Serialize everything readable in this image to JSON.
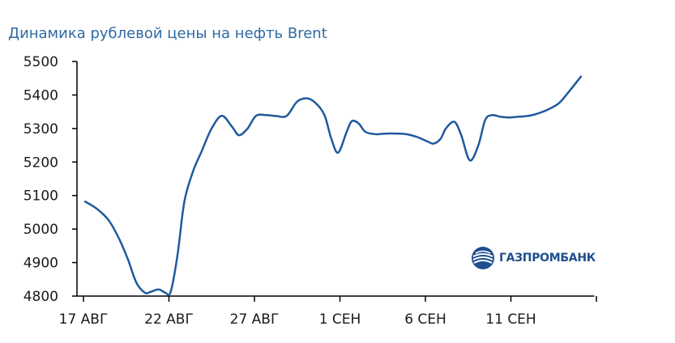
{
  "colors": {
    "line": "#1f5a9e",
    "title": "#2f6aa3",
    "axis": "#000000",
    "logo": "#1f4f8f"
  },
  "chart_data": {
    "type": "line",
    "title": "Динамика рублевой цены на нефть Brent",
    "xlabel": "",
    "ylabel": "",
    "ylim": [
      4800,
      5500
    ],
    "yticks": [
      4800,
      4900,
      5000,
      5100,
      5200,
      5300,
      5400,
      5500
    ],
    "ytick_labels": [
      "4800",
      "4900",
      "5000",
      "5100",
      "5200",
      "5300",
      "5400",
      "5500"
    ],
    "x_start_day": 17,
    "xlim_days": [
      16.5,
      46.5
    ],
    "xticks": [
      {
        "day": 17,
        "label": "17 АВГ"
      },
      {
        "day": 22,
        "label": "22 АВГ"
      },
      {
        "day": 27,
        "label": "27 АВГ"
      },
      {
        "day": 32,
        "label": "1 СЕН"
      },
      {
        "day": 37,
        "label": "6 СЕН"
      },
      {
        "day": 42,
        "label": "11 СЕН"
      }
    ],
    "x_minor_tick_days": [
      47
    ],
    "grid": false,
    "series": [
      {
        "name": "",
        "x": [
          17.0,
          17.7,
          18.4,
          19.0,
          19.5,
          20.0,
          20.5,
          20.8,
          21.3,
          21.7,
          22.0,
          22.4,
          22.8,
          23.3,
          23.8,
          24.4,
          25.0,
          25.6,
          26.0,
          26.5,
          27.0,
          27.6,
          28.2,
          28.8,
          29.4,
          30.0,
          30.5,
          31.0,
          31.4,
          31.8,
          32.3,
          32.6,
          33.0,
          33.4,
          34.0,
          34.6,
          35.2,
          35.8,
          36.4,
          37.0,
          37.4,
          37.8,
          38.1,
          38.6,
          39.0,
          39.5,
          40.0,
          40.4,
          40.8,
          41.3,
          41.8,
          42.3,
          42.8,
          43.3,
          44.0,
          44.7,
          45.3,
          46.0
        ],
        "values": [
          5082,
          5060,
          5025,
          4970,
          4910,
          4840,
          4810,
          4812,
          4820,
          4810,
          4812,
          4920,
          5080,
          5170,
          5230,
          5300,
          5338,
          5305,
          5280,
          5300,
          5338,
          5340,
          5337,
          5338,
          5380,
          5390,
          5375,
          5340,
          5270,
          5228,
          5290,
          5322,
          5315,
          5290,
          5283,
          5285,
          5285,
          5283,
          5275,
          5262,
          5255,
          5270,
          5300,
          5320,
          5280,
          5205,
          5250,
          5325,
          5340,
          5335,
          5333,
          5335,
          5337,
          5342,
          5355,
          5375,
          5410,
          5455
        ]
      }
    ]
  },
  "logo": {
    "text": "ГАЗПРОМБАНК",
    "icon": "gazprombank-logo-icon"
  }
}
